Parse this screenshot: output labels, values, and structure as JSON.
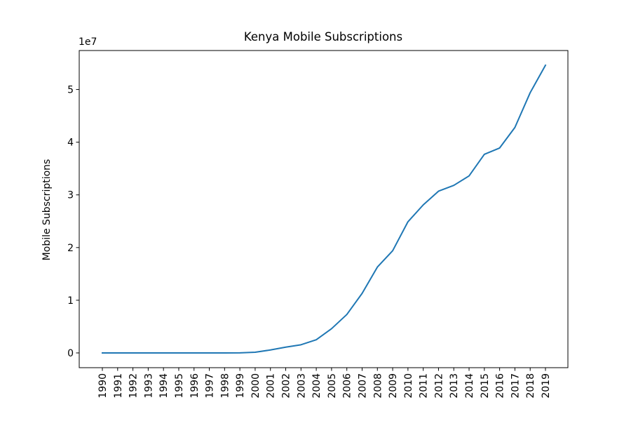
{
  "chart_data": {
    "type": "line",
    "title": "Kenya Mobile Subscriptions",
    "xlabel": "",
    "ylabel": "Mobile Subscriptions",
    "y_offset_label": "1e7",
    "categories": [
      "1990",
      "1991",
      "1992",
      "1993",
      "1994",
      "1995",
      "1996",
      "1997",
      "1998",
      "1999",
      "2000",
      "2001",
      "2002",
      "2003",
      "2004",
      "2005",
      "2006",
      "2007",
      "2008",
      "2009",
      "2010",
      "2011",
      "2012",
      "2013",
      "2014",
      "2015",
      "2016",
      "2017",
      "2018",
      "2019"
    ],
    "ylim": [
      -2800000,
      57400000
    ],
    "yticks": [
      0,
      10000000,
      20000000,
      30000000,
      40000000,
      50000000
    ],
    "ytick_labels": [
      "0",
      "1",
      "2",
      "3",
      "4",
      "5"
    ],
    "grid": false,
    "series": [
      {
        "color": "#1f77b4",
        "values": [
          0,
          0,
          0,
          0,
          0,
          0,
          0,
          0,
          0,
          10000,
          130000,
          560000,
          1100000,
          1550000,
          2500000,
          4600000,
          7300000,
          11300000,
          16300000,
          19400000,
          24900000,
          28100000,
          30700000,
          31800000,
          33600000,
          37700000,
          38900000,
          42800000,
          49400000,
          54600000
        ]
      }
    ]
  }
}
